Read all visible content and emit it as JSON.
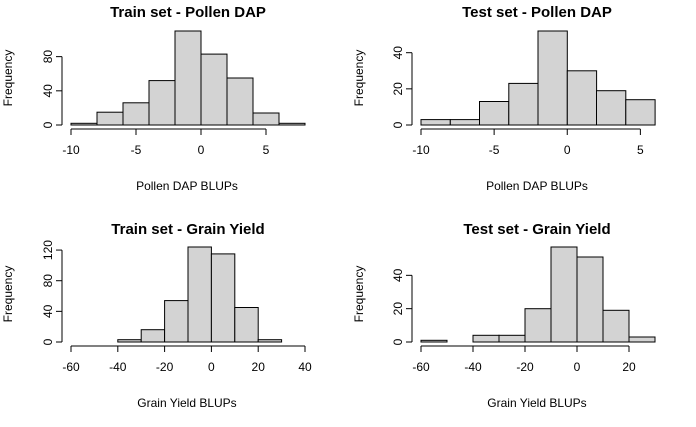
{
  "chart_data": [
    {
      "type": "histogram",
      "title": "Train set - Pollen DAP",
      "xlabel": "Pollen DAP BLUPs",
      "ylabel": "Frequency",
      "bin_edges": [
        -10,
        -8,
        -6,
        -4,
        -2,
        0,
        2,
        4,
        6,
        8
      ],
      "counts": [
        2,
        15,
        26,
        52,
        110,
        83,
        55,
        14,
        2
      ],
      "xticks": [
        -10,
        -5,
        0,
        5
      ],
      "yticks": [
        0,
        40,
        80
      ],
      "xlim": [
        -10,
        8
      ],
      "ylim": [
        0,
        110
      ]
    },
    {
      "type": "histogram",
      "title": "Test set - Pollen DAP",
      "xlabel": "Pollen DAP BLUPs",
      "ylabel": "Frequency",
      "bin_edges": [
        -10,
        -8,
        -6,
        -4,
        -2,
        0,
        2,
        4,
        6
      ],
      "counts": [
        3,
        3,
        13,
        23,
        52,
        30,
        19,
        14
      ],
      "xticks": [
        -10,
        -5,
        0,
        5
      ],
      "yticks": [
        0,
        20,
        40
      ],
      "xlim": [
        -10,
        6
      ],
      "ylim": [
        0,
        52
      ]
    },
    {
      "type": "histogram",
      "title": "Train set - Grain Yield",
      "xlabel": "Grain Yield BLUPs",
      "ylabel": "Frequency",
      "bin_edges": [
        -60,
        -50,
        -40,
        -30,
        -20,
        -10,
        0,
        10,
        20,
        30,
        40
      ],
      "counts": [
        0,
        0,
        3,
        16,
        54,
        124,
        115,
        45,
        3,
        0
      ],
      "xticks": [
        -60,
        -40,
        -20,
        0,
        20,
        40
      ],
      "yticks": [
        0,
        40,
        80,
        120
      ],
      "xlim": [
        -60,
        40
      ],
      "ylim": [
        0,
        124
      ]
    },
    {
      "type": "histogram",
      "title": "Test set - Grain Yield",
      "xlabel": "Grain Yield BLUPs",
      "ylabel": "Frequency",
      "bin_edges": [
        -60,
        -50,
        -40,
        -30,
        -20,
        -10,
        0,
        10,
        20,
        30
      ],
      "counts": [
        1,
        0,
        4,
        4,
        20,
        57,
        51,
        19,
        3
      ],
      "xticks": [
        -60,
        -40,
        -20,
        0,
        20
      ],
      "yticks": [
        0,
        20,
        40
      ],
      "xlim": [
        -60,
        30
      ],
      "ylim": [
        0,
        57
      ]
    }
  ]
}
